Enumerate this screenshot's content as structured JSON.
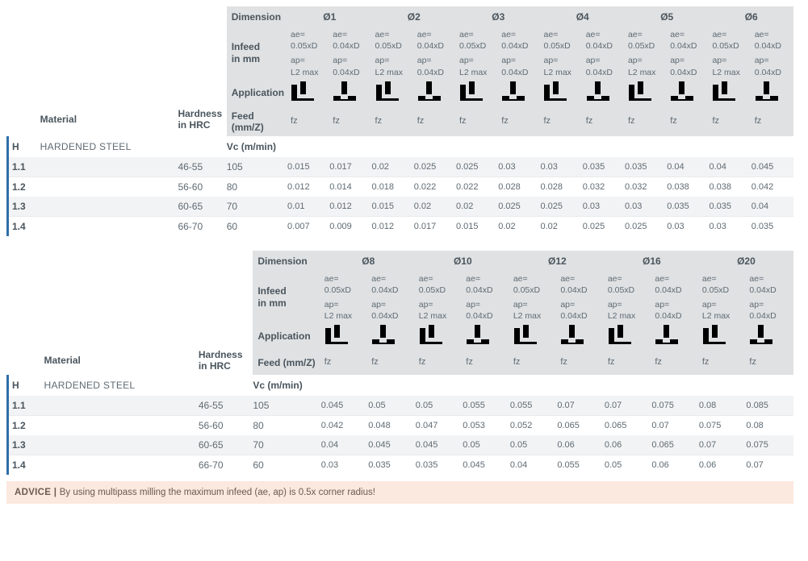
{
  "labels": {
    "dimension": "Dimension",
    "infeed": "Infeed",
    "infeed_unit": "in mm",
    "application": "Application",
    "feed": "Feed (mm/Z)",
    "material": "Material",
    "hardness": "Hardness",
    "hardness_unit": "in HRC",
    "vc": "Vc (m/min)",
    "fz": "fz",
    "ae_a": "ae=",
    "ae_a_v": "0.05xD",
    "ae_b": "ae=",
    "ae_b_v": "0.04xD",
    "ap_a": "ap=",
    "ap_a_v": "L2 max",
    "ap_b": "ap=",
    "ap_b_v": "0.04xD",
    "h": "H",
    "material_name": "HARDENED STEEL"
  },
  "colors": {
    "text": "#5f6b73",
    "text_strong": "#4a555d",
    "header_bg": "#dfe1e3",
    "row_alt": "#f2f3f4",
    "row_line": "#e9eaeb",
    "accent": "#2f6fa8",
    "advice_bg": "#fbe8de",
    "advice_text": "#6b5a4e",
    "icon": "#6e777d",
    "background": "#ffffff"
  },
  "table1": {
    "diameters": [
      "Ø1",
      "Ø2",
      "Ø3",
      "Ø4",
      "Ø5",
      "Ø6"
    ],
    "rows": [
      {
        "idx": "1.1",
        "hrc": "46-55",
        "vc": "105",
        "fz": [
          "0.015",
          "0.017",
          "0.02",
          "0.025",
          "0.025",
          "0.03",
          "0.03",
          "0.035",
          "0.035",
          "0.04",
          "0.04",
          "0.045"
        ]
      },
      {
        "idx": "1.2",
        "hrc": "56-60",
        "vc": "80",
        "fz": [
          "0.012",
          "0.014",
          "0.018",
          "0.022",
          "0.022",
          "0.028",
          "0.028",
          "0.032",
          "0.032",
          "0.038",
          "0.038",
          "0.042"
        ]
      },
      {
        "idx": "1.3",
        "hrc": "60-65",
        "vc": "70",
        "fz": [
          "0.01",
          "0.012",
          "0.015",
          "0.02",
          "0.02",
          "0.025",
          "0.025",
          "0.03",
          "0.03",
          "0.035",
          "0.035",
          "0.04"
        ]
      },
      {
        "idx": "1.4",
        "hrc": "66-70",
        "vc": "60",
        "fz": [
          "0.007",
          "0.009",
          "0.012",
          "0.017",
          "0.015",
          "0.02",
          "0.02",
          "0.025",
          "0.025",
          "0.03",
          "0.03",
          "0.035"
        ]
      }
    ]
  },
  "table2": {
    "diameters": [
      "Ø8",
      "Ø10",
      "Ø12",
      "Ø16",
      "Ø20"
    ],
    "rows": [
      {
        "idx": "1.1",
        "hrc": "46-55",
        "vc": "105",
        "fz": [
          "0.045",
          "0.05",
          "0.05",
          "0.055",
          "0.055",
          "0.07",
          "0.07",
          "0.075",
          "0.08",
          "0.085"
        ]
      },
      {
        "idx": "1.2",
        "hrc": "56-60",
        "vc": "80",
        "fz": [
          "0.042",
          "0.048",
          "0.047",
          "0.053",
          "0.052",
          "0.065",
          "0.065",
          "0.07",
          "0.075",
          "0.08"
        ]
      },
      {
        "idx": "1.3",
        "hrc": "60-65",
        "vc": "70",
        "fz": [
          "0.04",
          "0.045",
          "0.045",
          "0.05",
          "0.05",
          "0.06",
          "0.06",
          "0.065",
          "0.07",
          "0.075"
        ]
      },
      {
        "idx": "1.4",
        "hrc": "66-70",
        "vc": "60",
        "fz": [
          "0.03",
          "0.035",
          "0.035",
          "0.045",
          "0.04",
          "0.055",
          "0.05",
          "0.06",
          "0.06",
          "0.07"
        ]
      }
    ]
  },
  "advice": {
    "prefix": "ADVICE | ",
    "text": "By using multipass milling the maximum infeed (ae, ap) is 0.5x corner radius!"
  }
}
